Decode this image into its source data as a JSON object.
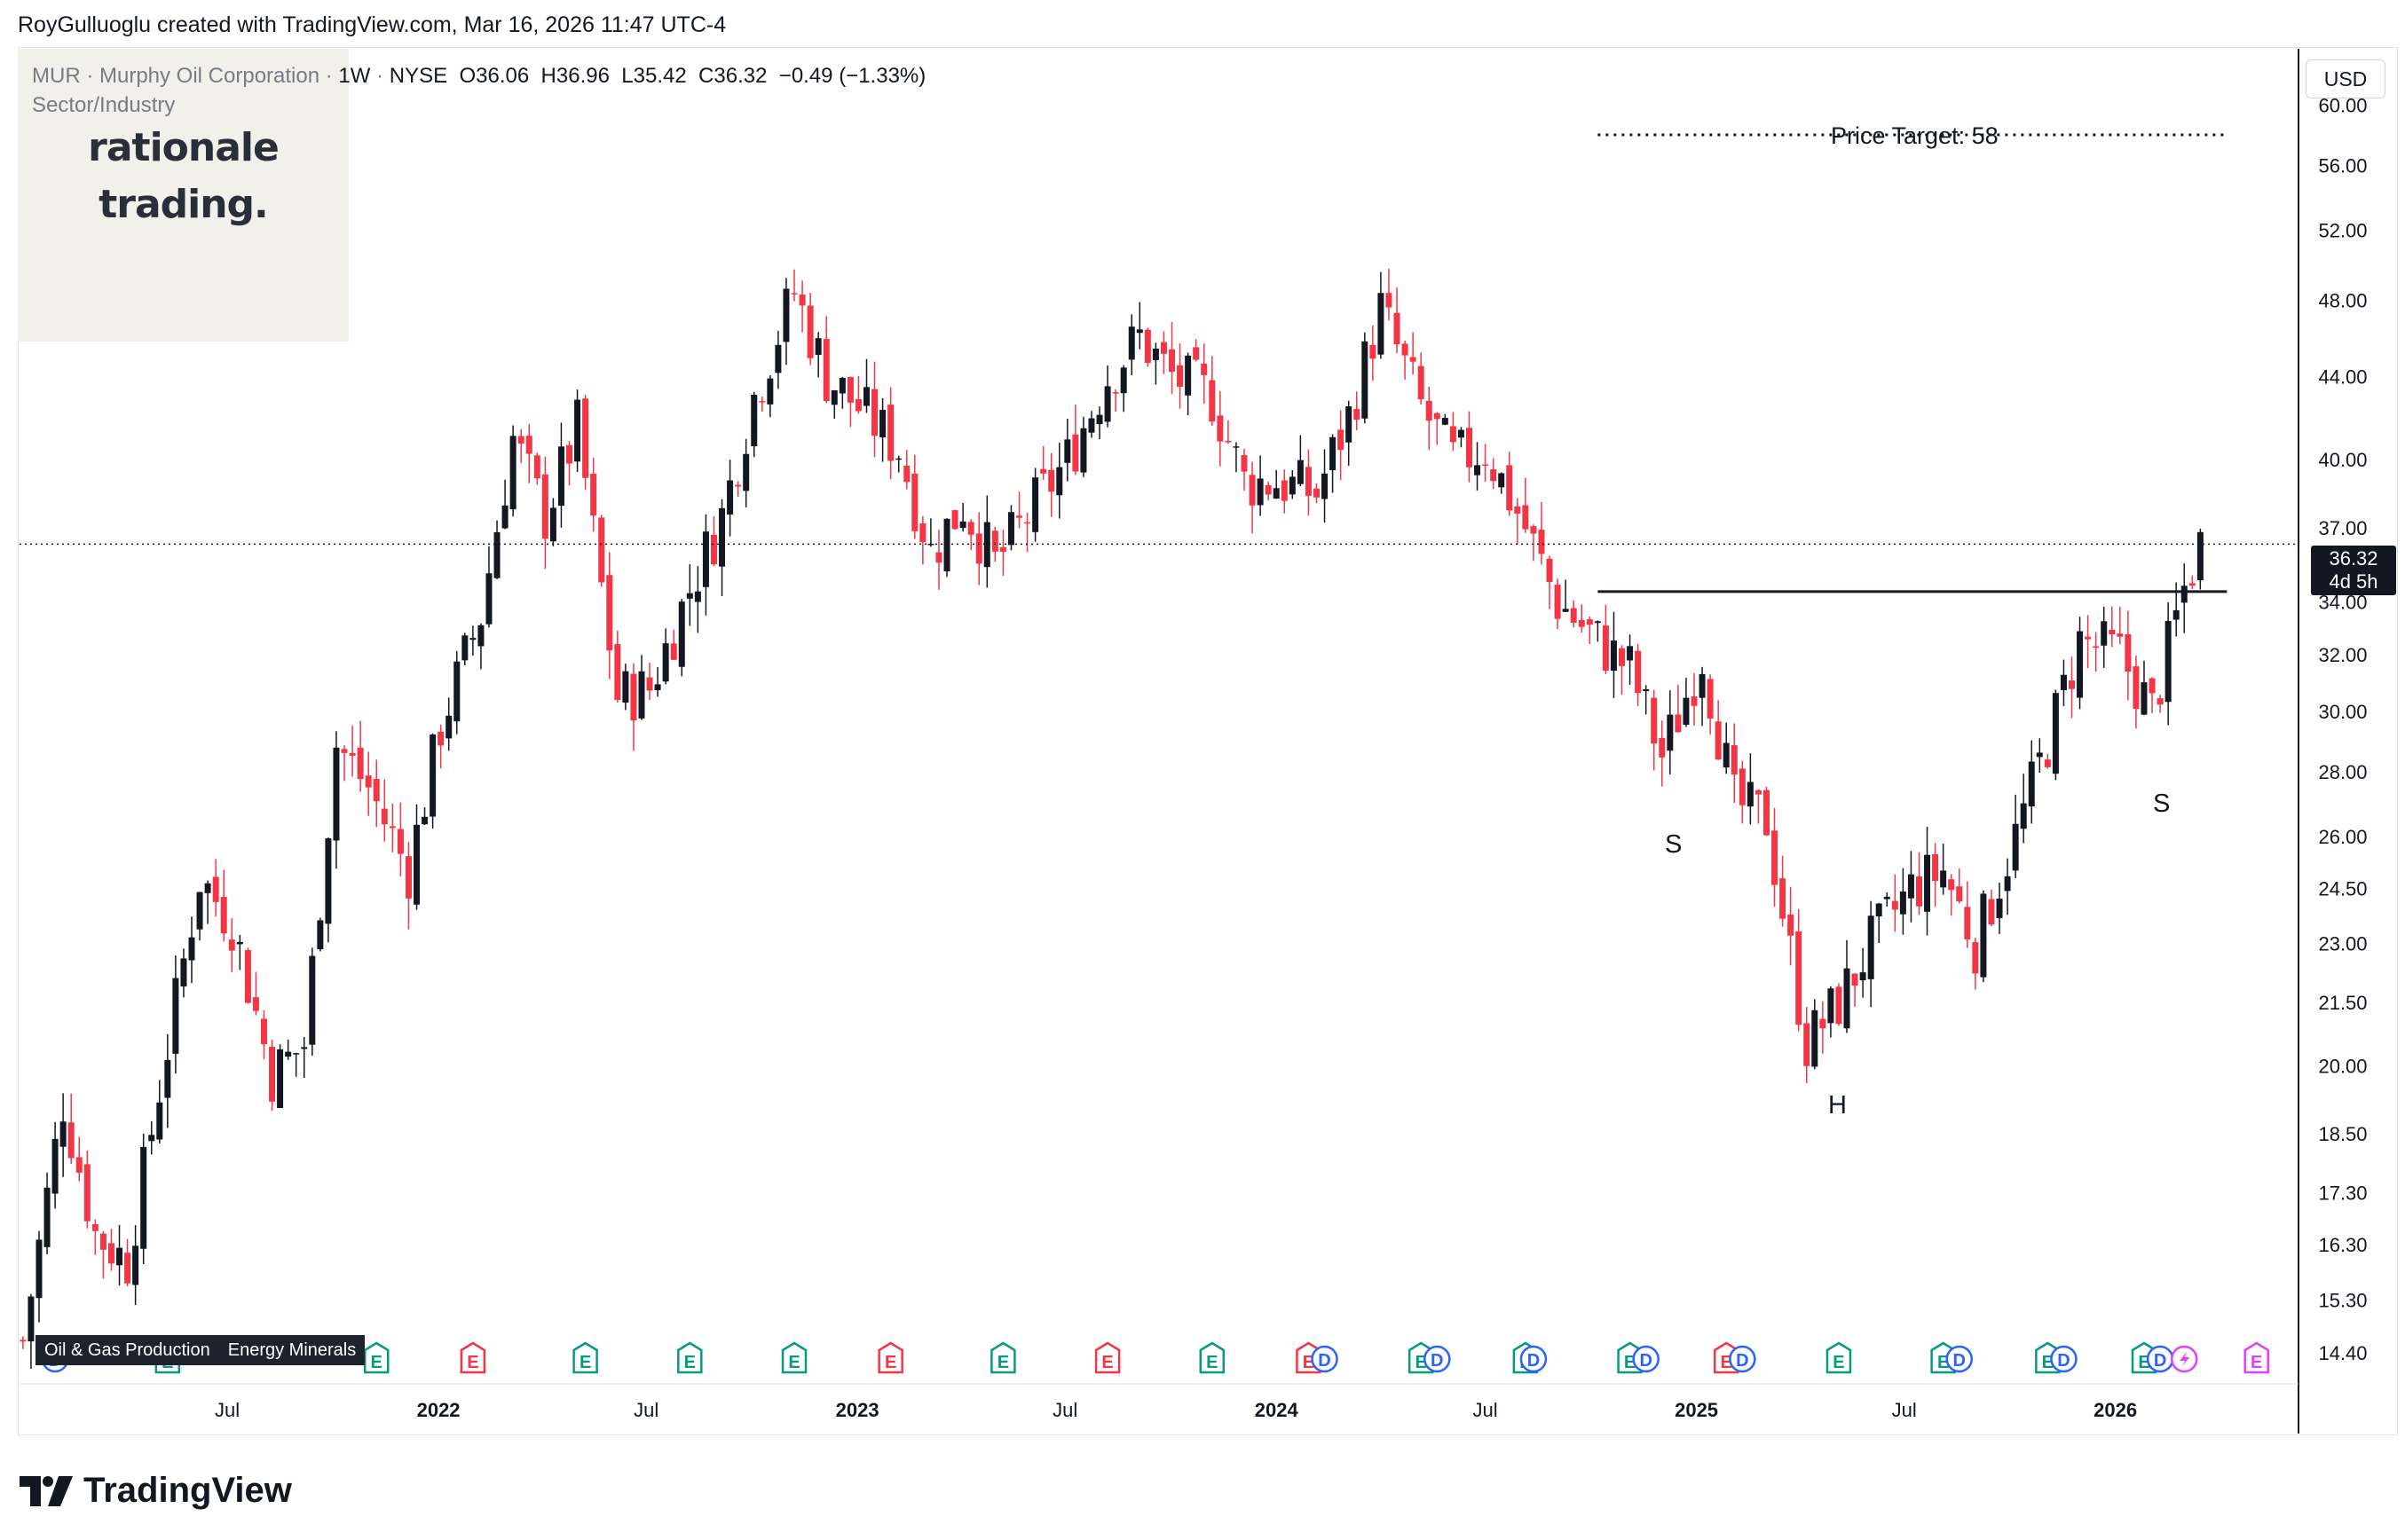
{
  "header": {
    "attribution": "RoyGulluoglu created with TradingView.com, Mar 16, 2026 11:47 UTC-4"
  },
  "symbol": {
    "ticker": "MUR",
    "name": "Murphy Oil Corporation",
    "interval": "1W",
    "exchange": "NYSE",
    "open_label": "O",
    "open": "36.06",
    "high_label": "H",
    "high": "36.96",
    "low_label": "L",
    "low": "35.42",
    "close_label": "C",
    "close": "36.32",
    "change": "−0.49 (−1.33%)",
    "sector_industry": "Sector/Industry",
    "sector_tags": [
      "Oil & Gas Production",
      "Energy Minerals"
    ]
  },
  "logo": {
    "line1": "rationale",
    "line2": "trading."
  },
  "currency": "USD",
  "last_price": {
    "value": "36.32",
    "countdown": "4d 5h"
  },
  "annotations": {
    "price_target": "Price Target: 58",
    "left_shoulder": "S",
    "head": "H",
    "right_shoulder": "S"
  },
  "footer": {
    "brand": "TradingView"
  },
  "colors": {
    "up": "#131722",
    "down": "#f23645",
    "earnings_past": "#089981",
    "earnings_neg": "#f23645",
    "dividend": "#2962ff",
    "split": "#e040fb"
  },
  "chart_data": {
    "type": "candlestick",
    "y_scale": "log",
    "ylim": [
      13.9,
      64
    ],
    "y_ticks": [
      "60.00",
      "56.00",
      "52.00",
      "48.00",
      "44.00",
      "40.00",
      "37.00",
      "34.00",
      "32.00",
      "30.00",
      "28.00",
      "26.00",
      "24.50",
      "23.00",
      "21.50",
      "20.00",
      "18.50",
      "17.30",
      "16.30",
      "15.30",
      "14.40"
    ],
    "x_labels": [
      {
        "date": "2021-07-01",
        "label": "Jul"
      },
      {
        "date": "2022-01-01",
        "label": "2022"
      },
      {
        "date": "2022-07-01",
        "label": "Jul"
      },
      {
        "date": "2023-01-01",
        "label": "2023"
      },
      {
        "date": "2023-07-01",
        "label": "Jul"
      },
      {
        "date": "2024-01-01",
        "label": "2024"
      },
      {
        "date": "2024-07-01",
        "label": "Jul"
      },
      {
        "date": "2025-01-01",
        "label": "2025"
      },
      {
        "date": "2025-07-01",
        "label": "Jul"
      },
      {
        "date": "2026-01-01",
        "label": "2026"
      }
    ],
    "x_range": [
      "2021-01-01",
      "2026-06-08"
    ],
    "close_series": [
      {
        "x": "2021-01-04",
        "y": 14.6
      },
      {
        "x": "2021-02-08",
        "y": 19.2
      },
      {
        "x": "2021-03-08",
        "y": 16.5
      },
      {
        "x": "2021-04-05",
        "y": 16.0
      },
      {
        "x": "2021-05-03",
        "y": 19.5
      },
      {
        "x": "2021-06-07",
        "y": 24.8
      },
      {
        "x": "2021-07-05",
        "y": 23.6
      },
      {
        "x": "2021-08-09",
        "y": 19.8
      },
      {
        "x": "2021-09-06",
        "y": 20.5
      },
      {
        "x": "2021-10-04",
        "y": 28.9
      },
      {
        "x": "2021-11-01",
        "y": 27.5
      },
      {
        "x": "2021-12-06",
        "y": 25.0
      },
      {
        "x": "2022-01-03",
        "y": 29.5
      },
      {
        "x": "2022-02-07",
        "y": 33.5
      },
      {
        "x": "2022-03-07",
        "y": 41.0
      },
      {
        "x": "2022-04-04",
        "y": 37.5
      },
      {
        "x": "2022-05-02",
        "y": 41.5
      },
      {
        "x": "2022-06-06",
        "y": 30.5
      },
      {
        "x": "2022-07-04",
        "y": 30.8
      },
      {
        "x": "2022-08-08",
        "y": 34.5
      },
      {
        "x": "2022-09-05",
        "y": 37.5
      },
      {
        "x": "2022-10-03",
        "y": 43.0
      },
      {
        "x": "2022-11-07",
        "y": 48.5
      },
      {
        "x": "2022-12-05",
        "y": 44.0
      },
      {
        "x": "2023-01-02",
        "y": 42.5
      },
      {
        "x": "2023-02-06",
        "y": 40.5
      },
      {
        "x": "2023-03-06",
        "y": 36.0
      },
      {
        "x": "2023-04-03",
        "y": 38.0
      },
      {
        "x": "2023-05-01",
        "y": 35.5
      },
      {
        "x": "2023-06-05",
        "y": 38.0
      },
      {
        "x": "2023-07-03",
        "y": 40.0
      },
      {
        "x": "2023-08-07",
        "y": 44.0
      },
      {
        "x": "2023-09-04",
        "y": 46.0
      },
      {
        "x": "2023-10-02",
        "y": 44.0
      },
      {
        "x": "2023-11-06",
        "y": 43.0
      },
      {
        "x": "2023-12-04",
        "y": 39.0
      },
      {
        "x": "2024-01-01",
        "y": 39.0
      },
      {
        "x": "2024-02-05",
        "y": 38.5
      },
      {
        "x": "2024-03-04",
        "y": 42.0
      },
      {
        "x": "2024-04-01",
        "y": 47.5
      },
      {
        "x": "2024-05-06",
        "y": 42.5
      },
      {
        "x": "2024-06-03",
        "y": 40.0
      },
      {
        "x": "2024-07-01",
        "y": 40.5
      },
      {
        "x": "2024-08-05",
        "y": 37.0
      },
      {
        "x": "2024-09-02",
        "y": 34.0
      },
      {
        "x": "2024-10-07",
        "y": 32.5
      },
      {
        "x": "2024-11-04",
        "y": 31.5
      },
      {
        "x": "2024-12-02",
        "y": 28.5
      },
      {
        "x": "2025-01-06",
        "y": 32.0
      },
      {
        "x": "2025-02-03",
        "y": 27.0
      },
      {
        "x": "2025-03-03",
        "y": 26.5
      },
      {
        "x": "2025-04-07",
        "y": 20.5
      },
      {
        "x": "2025-05-05",
        "y": 21.5
      },
      {
        "x": "2025-06-02",
        "y": 23.0
      },
      {
        "x": "2025-07-07",
        "y": 24.5
      },
      {
        "x": "2025-08-04",
        "y": 25.0
      },
      {
        "x": "2025-09-01",
        "y": 23.0
      },
      {
        "x": "2025-10-06",
        "y": 26.0
      },
      {
        "x": "2025-11-03",
        "y": 29.0
      },
      {
        "x": "2025-12-01",
        "y": 32.5
      },
      {
        "x": "2026-01-05",
        "y": 32.0
      },
      {
        "x": "2026-02-02",
        "y": 30.0
      },
      {
        "x": "2026-03-02",
        "y": 34.5
      },
      {
        "x": "2026-03-16",
        "y": 36.32
      }
    ],
    "neckline": {
      "y": 34.4,
      "x_start": "2024-10-07",
      "x_end": "2026-03-16"
    },
    "price_target": {
      "y": 58,
      "x_start": "2024-10-07",
      "x_end": "2026-03-16"
    },
    "events": [
      {
        "date": "2021-02-01",
        "type": "D"
      },
      {
        "date": "2021-05-10",
        "type": "E"
      },
      {
        "date": "2021-11-08",
        "type": "E"
      },
      {
        "date": "2022-01-31",
        "type": "E",
        "negative": true
      },
      {
        "date": "2022-05-09",
        "type": "E"
      },
      {
        "date": "2022-08-08",
        "type": "E"
      },
      {
        "date": "2022-11-07",
        "type": "E"
      },
      {
        "date": "2023-01-30",
        "type": "E",
        "negative": true
      },
      {
        "date": "2023-05-08",
        "type": "E"
      },
      {
        "date": "2023-08-07",
        "type": "E",
        "negative": true
      },
      {
        "date": "2023-11-06",
        "type": "E"
      },
      {
        "date": "2024-01-29",
        "type": "E",
        "negative": true
      },
      {
        "date": "2024-02-12",
        "type": "D"
      },
      {
        "date": "2024-05-06",
        "type": "E"
      },
      {
        "date": "2024-05-20",
        "type": "D"
      },
      {
        "date": "2024-08-05",
        "type": "E"
      },
      {
        "date": "2024-08-12",
        "type": "D"
      },
      {
        "date": "2024-11-04",
        "type": "E"
      },
      {
        "date": "2024-11-18",
        "type": "D"
      },
      {
        "date": "2025-01-27",
        "type": "E",
        "negative": true
      },
      {
        "date": "2025-02-10",
        "type": "D"
      },
      {
        "date": "2025-05-05",
        "type": "E"
      },
      {
        "date": "2025-08-04",
        "type": "E"
      },
      {
        "date": "2025-08-18",
        "type": "D"
      },
      {
        "date": "2025-11-03",
        "type": "E"
      },
      {
        "date": "2025-11-17",
        "type": "D"
      },
      {
        "date": "2026-01-26",
        "type": "E"
      },
      {
        "date": "2026-02-09",
        "type": "D"
      },
      {
        "date": "2026-03-02",
        "type": "split"
      },
      {
        "date": "2026-05-04",
        "type": "E",
        "upcoming": true
      }
    ]
  }
}
